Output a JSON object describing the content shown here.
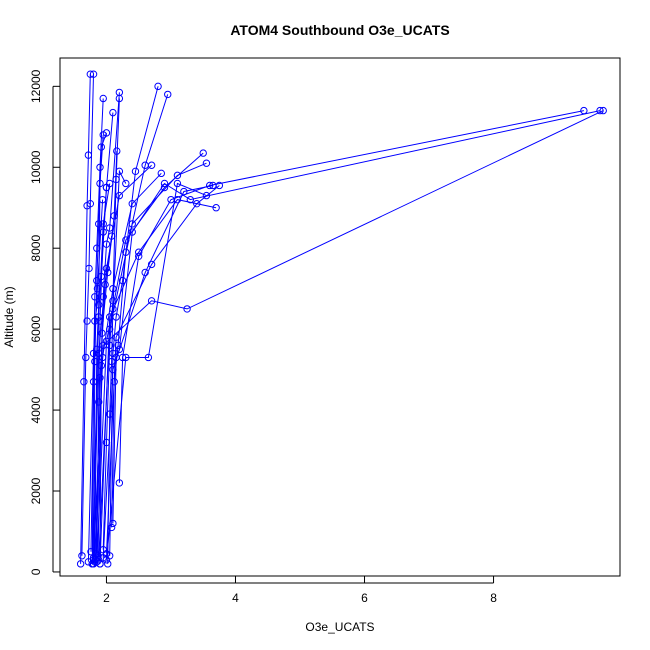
{
  "chart_data": {
    "type": "line",
    "title": "ATOM4 Southbound O3e_UCATS",
    "xlabel": "O3e_UCATS",
    "ylabel": "Altitude (m)",
    "xlim": [
      1.28,
      9.96
    ],
    "ylim": [
      -100,
      12700
    ],
    "x_ticks": [
      2,
      4,
      6,
      8
    ],
    "y_ticks": [
      0,
      2000,
      4000,
      6000,
      8000,
      10000,
      12000
    ],
    "grid": false,
    "legend": "none",
    "series_color": "#0000ff",
    "marker": "open-circle",
    "series": [
      {
        "x": [
          1.6,
          1.65,
          1.7,
          1.72,
          1.75
        ],
        "y": [
          200,
          4700,
          9050,
          10300,
          12300
        ]
      },
      {
        "x": [
          1.62,
          1.68,
          1.7,
          1.73,
          1.75,
          1.8
        ],
        "y": [
          400,
          5300,
          6200,
          7500,
          9100,
          12300
        ]
      },
      {
        "x": [
          1.78,
          1.8,
          1.82,
          1.85,
          1.9,
          1.95
        ],
        "y": [
          200,
          4700,
          6800,
          8000,
          10000,
          11700
        ]
      },
      {
        "x": [
          1.8,
          1.82,
          1.85,
          1.88,
          1.92,
          2.0
        ],
        "y": [
          300,
          5200,
          7200,
          8600,
          10500,
          10850
        ]
      },
      {
        "x": [
          1.82,
          1.85,
          1.88,
          1.9,
          1.95
        ],
        "y": [
          250,
          5500,
          6600,
          9600,
          10800
        ]
      },
      {
        "x": [
          1.85,
          1.88,
          1.9,
          1.95,
          2.0,
          2.1
        ],
        "y": [
          350,
          4200,
          6200,
          8400,
          9500,
          11350
        ]
      },
      {
        "x": [
          1.9,
          1.92,
          1.95,
          2.0,
          2.05,
          2.2
        ],
        "y": [
          200,
          5100,
          6800,
          8100,
          8500,
          11850
        ]
      },
      {
        "x": [
          1.95,
          2.0,
          2.05,
          2.1,
          2.15,
          2.2
        ],
        "y": [
          550,
          3200,
          5600,
          6700,
          9700,
          11700
        ]
      },
      {
        "x": [
          2.02,
          2.05,
          2.08,
          2.1,
          2.2,
          2.3
        ],
        "y": [
          200,
          3900,
          5200,
          6500,
          9900,
          9600
        ]
      },
      {
        "x": [
          2.05,
          2.1,
          2.15,
          2.25,
          2.45,
          2.8
        ],
        "y": [
          400,
          5400,
          6300,
          7200,
          9900,
          12000
        ]
      },
      {
        "x": [
          2.08,
          2.12,
          2.18,
          2.3,
          2.6,
          2.95
        ],
        "y": [
          1100,
          4700,
          5600,
          7900,
          10050,
          11800
        ]
      },
      {
        "x": [
          2.1,
          2.15,
          2.2,
          2.4,
          2.9,
          3.3,
          9.65
        ],
        "y": [
          1200,
          5300,
          5500,
          8400,
          9600,
          9200,
          11400
        ]
      },
      {
        "x": [
          2.2,
          2.25,
          2.5,
          3.0,
          3.6,
          9.4
        ],
        "y": [
          2200,
          5300,
          7800,
          9200,
          9550,
          11400
        ]
      },
      {
        "x": [
          1.85,
          2.0,
          2.3,
          2.9,
          3.5
        ],
        "y": [
          250,
          5700,
          8200,
          9500,
          10350
        ]
      },
      {
        "x": [
          1.88,
          2.05,
          2.4,
          3.1,
          3.55
        ],
        "y": [
          300,
          6000,
          8600,
          9800,
          10100
        ]
      },
      {
        "x": [
          1.95,
          2.1,
          2.6,
          3.2,
          3.65
        ],
        "y": [
          350,
          5000,
          7400,
          9400,
          9550
        ]
      },
      {
        "x": [
          2.0,
          2.15,
          2.7,
          3.4,
          3.75
        ],
        "y": [
          450,
          5800,
          7600,
          9100,
          9550
        ]
      },
      {
        "x": [
          1.9,
          2.05,
          2.5,
          3.1,
          3.7
        ],
        "y": [
          200,
          6300,
          7900,
          9200,
          9000
        ]
      },
      {
        "x": [
          2.0,
          2.3,
          2.65,
          3.1,
          3.55
        ],
        "y": [
          300,
          5300,
          5300,
          9600,
          9300
        ]
      },
      {
        "x": [
          1.8,
          1.95,
          2.7,
          3.25,
          9.7
        ],
        "y": [
          200,
          5600,
          6700,
          6500,
          11400
        ]
      },
      {
        "x": [
          1.78,
          1.88,
          1.95,
          2.05
        ],
        "y": [
          200,
          6300,
          8600,
          9600
        ]
      },
      {
        "x": [
          1.83,
          1.9,
          1.98,
          2.08
        ],
        "y": [
          300,
          4800,
          7100,
          8300
        ]
      },
      {
        "x": [
          1.87,
          1.93,
          2.02,
          2.12,
          2.16
        ],
        "y": [
          400,
          5900,
          7400,
          8800,
          10400
        ]
      },
      {
        "x": [
          1.76,
          1.82,
          1.92,
          2.0
        ],
        "y": [
          500,
          6200,
          7300,
          9500
        ]
      },
      {
        "x": [
          1.72,
          1.8,
          1.86,
          1.94
        ],
        "y": [
          250,
          5400,
          7000,
          9200
        ]
      },
      {
        "x": [
          1.8,
          1.88,
          2.0,
          2.2,
          2.7
        ],
        "y": [
          350,
          5400,
          7500,
          9300,
          10050
        ]
      },
      {
        "x": [
          1.84,
          1.94,
          2.1,
          2.4,
          2.85
        ],
        "y": [
          450,
          5300,
          7000,
          9100,
          9850
        ]
      }
    ]
  }
}
